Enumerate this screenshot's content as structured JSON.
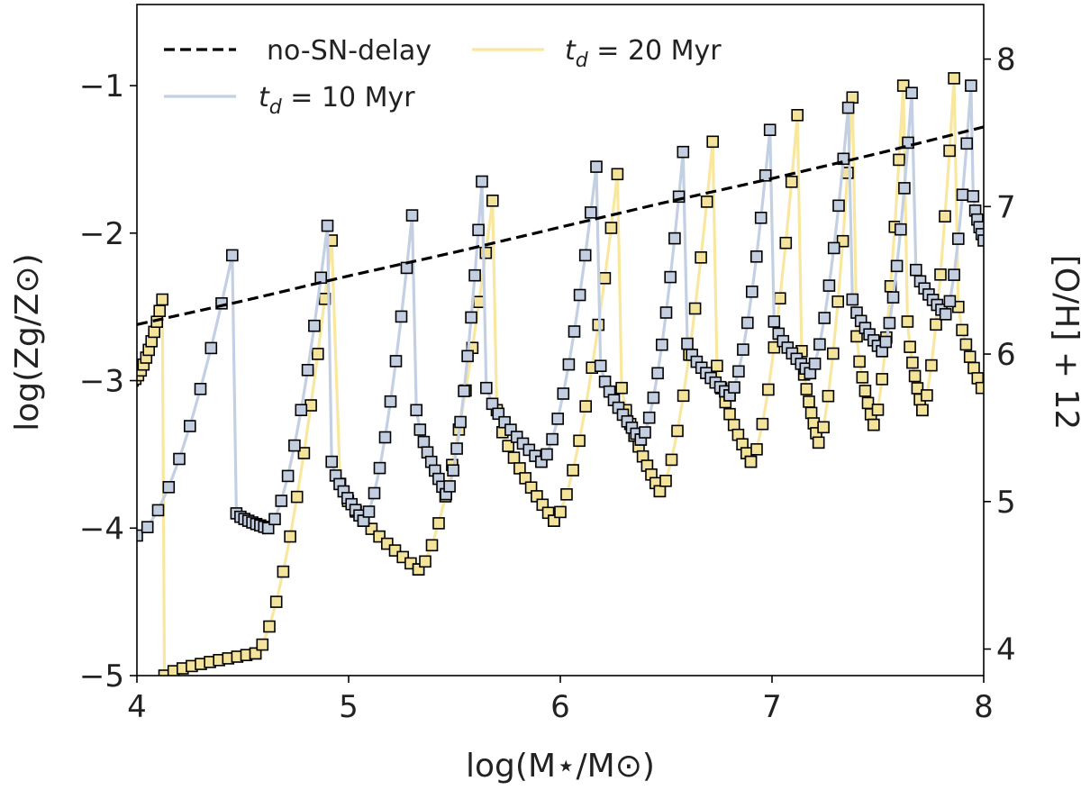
{
  "chart_data": {
    "type": "scatter",
    "xlabel": "log(M⋆/M⊙)",
    "ylabel": "log(Zg/Z⊙)",
    "ylabel_right": "[O/H] + 12",
    "xlim": [
      4,
      8
    ],
    "ylim": [
      -5,
      -0.45
    ],
    "ylim_right": [
      3.82,
      8.37
    ],
    "x_ticks": [
      "4",
      "5",
      "6",
      "7",
      "8"
    ],
    "y_ticks": [
      "−5",
      "−4",
      "−3",
      "−2",
      "−1"
    ],
    "y_ticks_right": [
      "4",
      "5",
      "6",
      "7",
      "8"
    ],
    "legend": {
      "placement": "top-left",
      "entries": [
        {
          "key": "nosn",
          "label": "no-SN-delay",
          "style": "dashed",
          "color": "#000000"
        },
        {
          "key": "td20",
          "label": "t_d = 20 Myr",
          "label_pre": "t",
          "label_sub": "d",
          "label_post": " = 20 Myr",
          "style": "solid",
          "color": "#f9e79f"
        },
        {
          "key": "td10",
          "label": "t_d = 10 Myr",
          "label_pre": "t",
          "label_sub": "d",
          "label_post": " = 10 Myr",
          "style": "solid",
          "color": "#c3cfe3"
        }
      ]
    },
    "series": [
      {
        "name": "no-SN-delay",
        "style": "dashed",
        "color": "#000000",
        "x": [
          4.0,
          4.5,
          5.0,
          5.5,
          6.0,
          6.5,
          7.0,
          7.5,
          8.0
        ],
        "y": [
          -2.62,
          -2.46,
          -2.29,
          -2.13,
          -1.96,
          -1.79,
          -1.63,
          -1.46,
          -1.28
        ]
      },
      {
        "name": "t_d = 20 Myr",
        "line_color": "#f9e79f",
        "marker_fill": "#f4e39a",
        "cycles": [
          {
            "x0": 3.98,
            "rise_end": 4.12,
            "ymin": -3.0,
            "ymax": -2.45,
            "drop": 4.13,
            "ylow": -5.0,
            "decay_end": 4.56,
            "yend": -4.85,
            "n": 12
          },
          {
            "x0": 4.56,
            "rise_end": 4.92,
            "ymin": -4.85,
            "ymax": -2.05,
            "drop": 4.96,
            "ylow": -3.7,
            "decay_end": 5.33,
            "yend": -4.28,
            "n": 12
          },
          {
            "x0": 5.33,
            "rise_end": 5.68,
            "ymin": -4.28,
            "ymax": -1.78,
            "drop": 5.7,
            "ylow": -3.2,
            "decay_end": 5.97,
            "yend": -3.95,
            "n": 12
          },
          {
            "x0": 5.97,
            "rise_end": 6.27,
            "ymin": -3.95,
            "ymax": -1.6,
            "drop": 6.29,
            "ylow": -3.05,
            "decay_end": 6.47,
            "yend": -3.75,
            "n": 11
          },
          {
            "x0": 6.47,
            "rise_end": 6.72,
            "ymin": -3.75,
            "ymax": -1.38,
            "drop": 6.74,
            "ylow": -2.9,
            "decay_end": 6.9,
            "yend": -3.55,
            "n": 10
          },
          {
            "x0": 6.9,
            "rise_end": 7.12,
            "ymin": -3.55,
            "ymax": -1.2,
            "drop": 7.14,
            "ylow": -2.8,
            "decay_end": 7.22,
            "yend": -3.42,
            "n": 9
          },
          {
            "x0": 7.22,
            "rise_end": 7.38,
            "ymin": -3.42,
            "ymax": -1.08,
            "drop": 7.4,
            "ylow": -2.7,
            "decay_end": 7.48,
            "yend": -3.3,
            "n": 8
          },
          {
            "x0": 7.48,
            "rise_end": 7.62,
            "ymin": -3.3,
            "ymax": -1.0,
            "drop": 7.64,
            "ylow": -2.6,
            "decay_end": 7.71,
            "yend": -3.2,
            "n": 8
          },
          {
            "x0": 7.71,
            "rise_end": 7.86,
            "ymin": -3.2,
            "ymax": -0.95,
            "drop": 7.88,
            "ylow": -2.5,
            "decay_end": 7.99,
            "yend": -3.05,
            "n": 8
          }
        ]
      },
      {
        "name": "t_d = 10 Myr",
        "line_color": "#c3cfe3",
        "marker_fill": "#c3cfe0",
        "cycles": [
          {
            "x0": 4.0,
            "rise_end": 4.45,
            "ymin": -4.05,
            "ymax": -2.15,
            "drop": 4.47,
            "ylow": -3.9,
            "decay_end": 4.62,
            "yend": -4.0,
            "n": 10
          },
          {
            "x0": 4.62,
            "rise_end": 4.9,
            "ymin": -4.0,
            "ymax": -1.95,
            "drop": 4.92,
            "ylow": -3.55,
            "decay_end": 5.07,
            "yend": -3.95,
            "n": 10
          },
          {
            "x0": 5.07,
            "rise_end": 5.3,
            "ymin": -3.95,
            "ymax": -1.88,
            "drop": 5.32,
            "ylow": -3.2,
            "decay_end": 5.46,
            "yend": -3.77,
            "n": 10
          },
          {
            "x0": 5.46,
            "rise_end": 5.63,
            "ymin": -3.77,
            "ymax": -1.65,
            "drop": 5.65,
            "ylow": -3.05,
            "decay_end": 5.91,
            "yend": -3.55,
            "n": 11
          },
          {
            "x0": 5.91,
            "rise_end": 6.17,
            "ymin": -3.55,
            "ymax": -1.55,
            "drop": 6.19,
            "ylow": -2.9,
            "decay_end": 6.38,
            "yend": -3.4,
            "n": 11
          },
          {
            "x0": 6.38,
            "rise_end": 6.58,
            "ymin": -3.4,
            "ymax": -1.45,
            "drop": 6.6,
            "ylow": -2.75,
            "decay_end": 6.8,
            "yend": -3.1,
            "n": 11
          },
          {
            "x0": 6.8,
            "rise_end": 6.99,
            "ymin": -3.1,
            "ymax": -1.3,
            "drop": 7.01,
            "ylow": -2.6,
            "decay_end": 7.18,
            "yend": -2.95,
            "n": 10
          },
          {
            "x0": 7.18,
            "rise_end": 7.36,
            "ymin": -2.95,
            "ymax": -1.15,
            "drop": 7.38,
            "ylow": -2.45,
            "decay_end": 7.52,
            "yend": -2.8,
            "n": 9
          },
          {
            "x0": 7.52,
            "rise_end": 7.66,
            "ymin": -2.8,
            "ymax": -1.05,
            "drop": 7.68,
            "ylow": -2.25,
            "decay_end": 7.82,
            "yend": -2.55,
            "n": 9
          },
          {
            "x0": 7.82,
            "rise_end": 7.94,
            "ymin": -2.55,
            "ymax": -1.0,
            "drop": 7.95,
            "ylow": -1.75,
            "decay_end": 8.0,
            "yend": -2.05,
            "n": 7
          }
        ]
      }
    ]
  }
}
